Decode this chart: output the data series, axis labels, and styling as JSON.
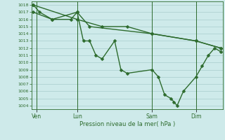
{
  "background_color": "#ceeaea",
  "grid_color": "#a8cccc",
  "line_color": "#2d6b2d",
  "markersize": 2.5,
  "linewidth": 1.0,
  "xlabel": "Pression niveau de la mer( hPa )",
  "ylim": [
    1003.5,
    1018.5
  ],
  "yticks": [
    1004,
    1005,
    1006,
    1007,
    1008,
    1009,
    1010,
    1011,
    1012,
    1013,
    1014,
    1015,
    1016,
    1017,
    1018
  ],
  "xlim": [
    -0.3,
    30.3
  ],
  "xtick_labels": [
    "Ven",
    "Lun",
    "Sam",
    "Dim"
  ],
  "xtick_positions": [
    0.5,
    7,
    19,
    26
  ],
  "vline_positions": [
    0.5,
    7,
    19,
    26
  ],
  "series": [
    {
      "x": [
        0,
        1,
        3,
        6,
        7,
        8,
        9,
        10,
        11,
        13,
        14,
        15,
        19,
        20,
        21,
        22,
        22.5,
        23,
        24,
        26,
        27,
        28,
        29,
        30
      ],
      "y": [
        1018,
        1017,
        1016,
        1016,
        1017,
        1013,
        1013,
        1011,
        1010.5,
        1013,
        1009,
        1008.5,
        1009,
        1008,
        1005.5,
        1005,
        1004.5,
        1004,
        1006,
        1008,
        1009.5,
        1011,
        1012,
        1011.5
      ]
    },
    {
      "x": [
        0,
        7,
        11,
        15,
        19,
        26,
        30
      ],
      "y": [
        1018,
        1016,
        1015,
        1015,
        1014,
        1013,
        1012
      ]
    },
    {
      "x": [
        0,
        3,
        7,
        9,
        19,
        26,
        30
      ],
      "y": [
        1017,
        1016,
        1017,
        1015,
        1014,
        1013,
        1012
      ]
    }
  ]
}
